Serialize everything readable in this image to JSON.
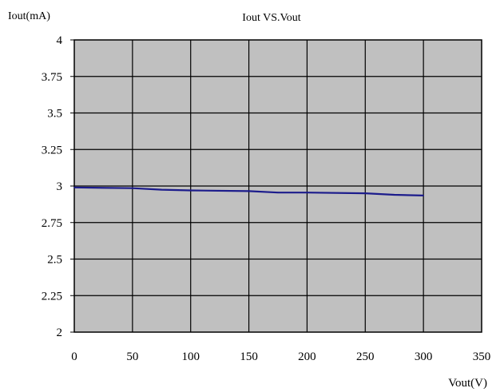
{
  "chart_data": {
    "type": "line",
    "title": "Iout VS.Vout",
    "xlabel": "Vout(V)",
    "ylabel": "Iout(mA)",
    "xlim": [
      0,
      350
    ],
    "ylim": [
      2,
      4
    ],
    "x_ticks": [
      0,
      50,
      100,
      150,
      200,
      250,
      300,
      350
    ],
    "y_ticks": [
      2,
      2.25,
      2.5,
      2.75,
      3,
      3.25,
      3.5,
      3.75,
      4
    ],
    "x_tick_labels": [
      "0",
      "50",
      "100",
      "150",
      "200",
      "250",
      "300",
      "350"
    ],
    "y_tick_labels": [
      "2",
      "2.25",
      "2.5",
      "2.75",
      "3",
      "3.25",
      "3.5",
      "3.75",
      "4"
    ],
    "grid": true,
    "legend": "none",
    "colors": {
      "plot_background": "#c0c0c0",
      "grid": "#000000",
      "series": "#1c1c8c"
    },
    "series": [
      {
        "x": [
          0,
          50,
          75,
          100,
          150,
          175,
          200,
          250,
          275,
          300
        ],
        "y": [
          2.99,
          2.985,
          2.975,
          2.97,
          2.965,
          2.955,
          2.955,
          2.95,
          2.94,
          2.935
        ]
      }
    ]
  }
}
